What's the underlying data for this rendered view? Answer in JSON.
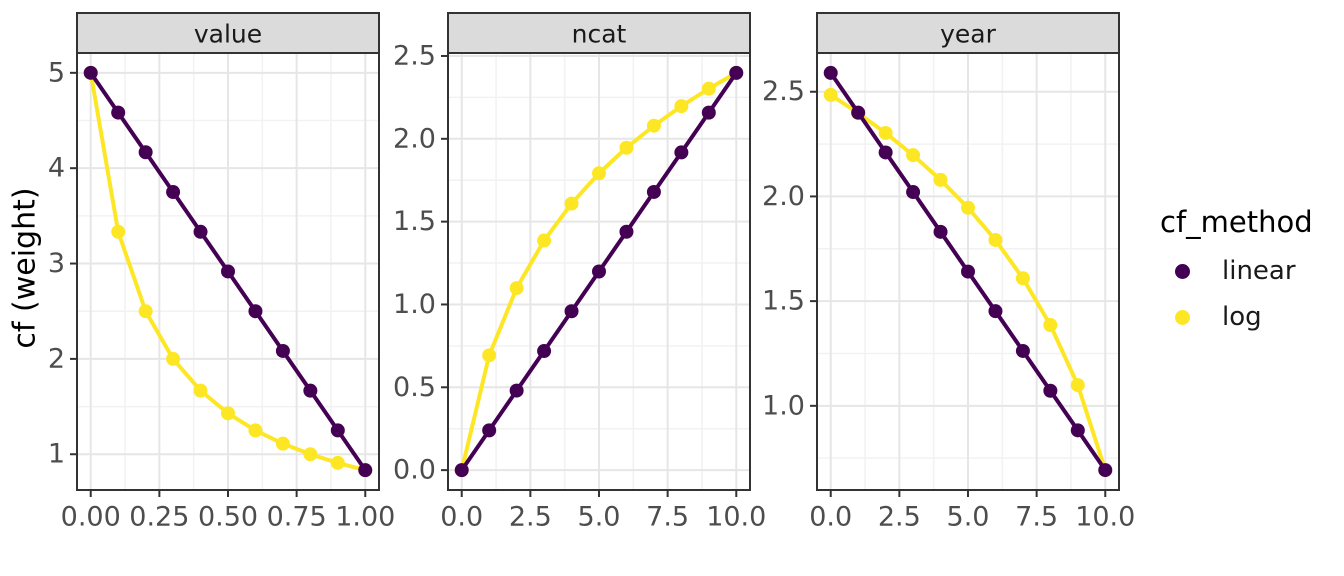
{
  "figure": {
    "y_axis_title": "cf (weight)",
    "theme": {
      "background": "#FFFFFF",
      "panel_bg": "#FFFFFF",
      "grid_major": "#E6E6E6",
      "grid_minor": "#F2F2F2",
      "panel_border": "#333333",
      "strip_bg": "#DBDBDB",
      "strip_border": "#333333",
      "strip_text": "#1A1A1A",
      "tick_mark": "#333333",
      "tick_label": "#4D4D4D",
      "title_text": "#000000"
    }
  },
  "legend": {
    "title": "cf_method",
    "position": "right",
    "items": [
      {
        "label": "linear",
        "color": "#440154"
      },
      {
        "label": "log",
        "color": "#FDE725"
      }
    ]
  },
  "chart_data": [
    {
      "type": "line",
      "facet": "value",
      "x": [
        0,
        0.1,
        0.2,
        0.3,
        0.4,
        0.5,
        0.6,
        0.7,
        0.8,
        0.9,
        1.0
      ],
      "series": [
        {
          "name": "linear",
          "color": "#440154",
          "values": [
            5.0,
            4.583,
            4.167,
            3.75,
            3.333,
            2.917,
            2.5,
            2.083,
            1.667,
            1.25,
            0.833
          ]
        },
        {
          "name": "log",
          "color": "#FDE725",
          "values": [
            5.0,
            3.333,
            2.5,
            2.0,
            1.667,
            1.429,
            1.25,
            1.111,
            1.0,
            0.909,
            0.833
          ]
        }
      ],
      "x_ticks": {
        "values": [
          0,
          0.25,
          0.5,
          0.75,
          1
        ],
        "labels": [
          "0.00",
          "0.25",
          "0.50",
          "0.75",
          "1.00"
        ]
      },
      "y_ticks": {
        "values": [
          1,
          2,
          3,
          4,
          5
        ],
        "labels": [
          "1",
          "2",
          "3",
          "4",
          "5"
        ]
      },
      "xlim": [
        -0.05,
        1.05
      ],
      "ylim": [
        0.625,
        5.208
      ],
      "grid": true
    },
    {
      "type": "line",
      "facet": "ncat",
      "x": [
        0,
        1,
        2,
        3,
        4,
        5,
        6,
        7,
        8,
        9,
        10
      ],
      "series": [
        {
          "name": "linear",
          "color": "#440154",
          "values": [
            0.0,
            0.24,
            0.48,
            0.719,
            0.959,
            1.199,
            1.439,
            1.679,
            1.918,
            2.158,
            2.398
          ]
        },
        {
          "name": "log",
          "color": "#FDE725",
          "values": [
            0.0,
            0.693,
            1.099,
            1.386,
            1.609,
            1.792,
            1.946,
            2.079,
            2.197,
            2.303,
            2.398
          ]
        }
      ],
      "x_ticks": {
        "values": [
          0,
          2.5,
          5,
          7.5,
          10
        ],
        "labels": [
          "0.0",
          "2.5",
          "5.0",
          "7.5",
          "10.0"
        ]
      },
      "y_ticks": {
        "values": [
          0,
          0.5,
          1,
          1.5,
          2,
          2.5
        ],
        "labels": [
          "0.0",
          "0.5",
          "1.0",
          "1.5",
          "2.0",
          "2.5"
        ]
      },
      "xlim": [
        -0.5,
        10.5
      ],
      "ylim": [
        -0.12,
        2.518
      ],
      "grid": true
    },
    {
      "type": "line",
      "facet": "year",
      "x": [
        0,
        1,
        2,
        3,
        4,
        5,
        6,
        7,
        8,
        9,
        10
      ],
      "series": [
        {
          "name": "linear",
          "color": "#440154",
          "values": [
            2.59,
            2.4,
            2.21,
            2.021,
            1.831,
            1.641,
            1.452,
            1.262,
            1.072,
            0.883,
            0.693
          ]
        },
        {
          "name": "log",
          "color": "#FDE725",
          "values": [
            2.485,
            2.398,
            2.303,
            2.197,
            2.079,
            1.946,
            1.792,
            1.609,
            1.386,
            1.099,
            0.693
          ]
        }
      ],
      "x_ticks": {
        "values": [
          0,
          2.5,
          5,
          7.5,
          10
        ],
        "labels": [
          "0.0",
          "2.5",
          "5.0",
          "7.5",
          "10.0"
        ]
      },
      "y_ticks": {
        "values": [
          1,
          1.5,
          2,
          2.5
        ],
        "labels": [
          "1.0",
          "1.5",
          "2.0",
          "2.5"
        ]
      },
      "xlim": [
        -0.5,
        10.5
      ],
      "ylim": [
        0.598,
        2.685
      ],
      "grid": true
    }
  ]
}
